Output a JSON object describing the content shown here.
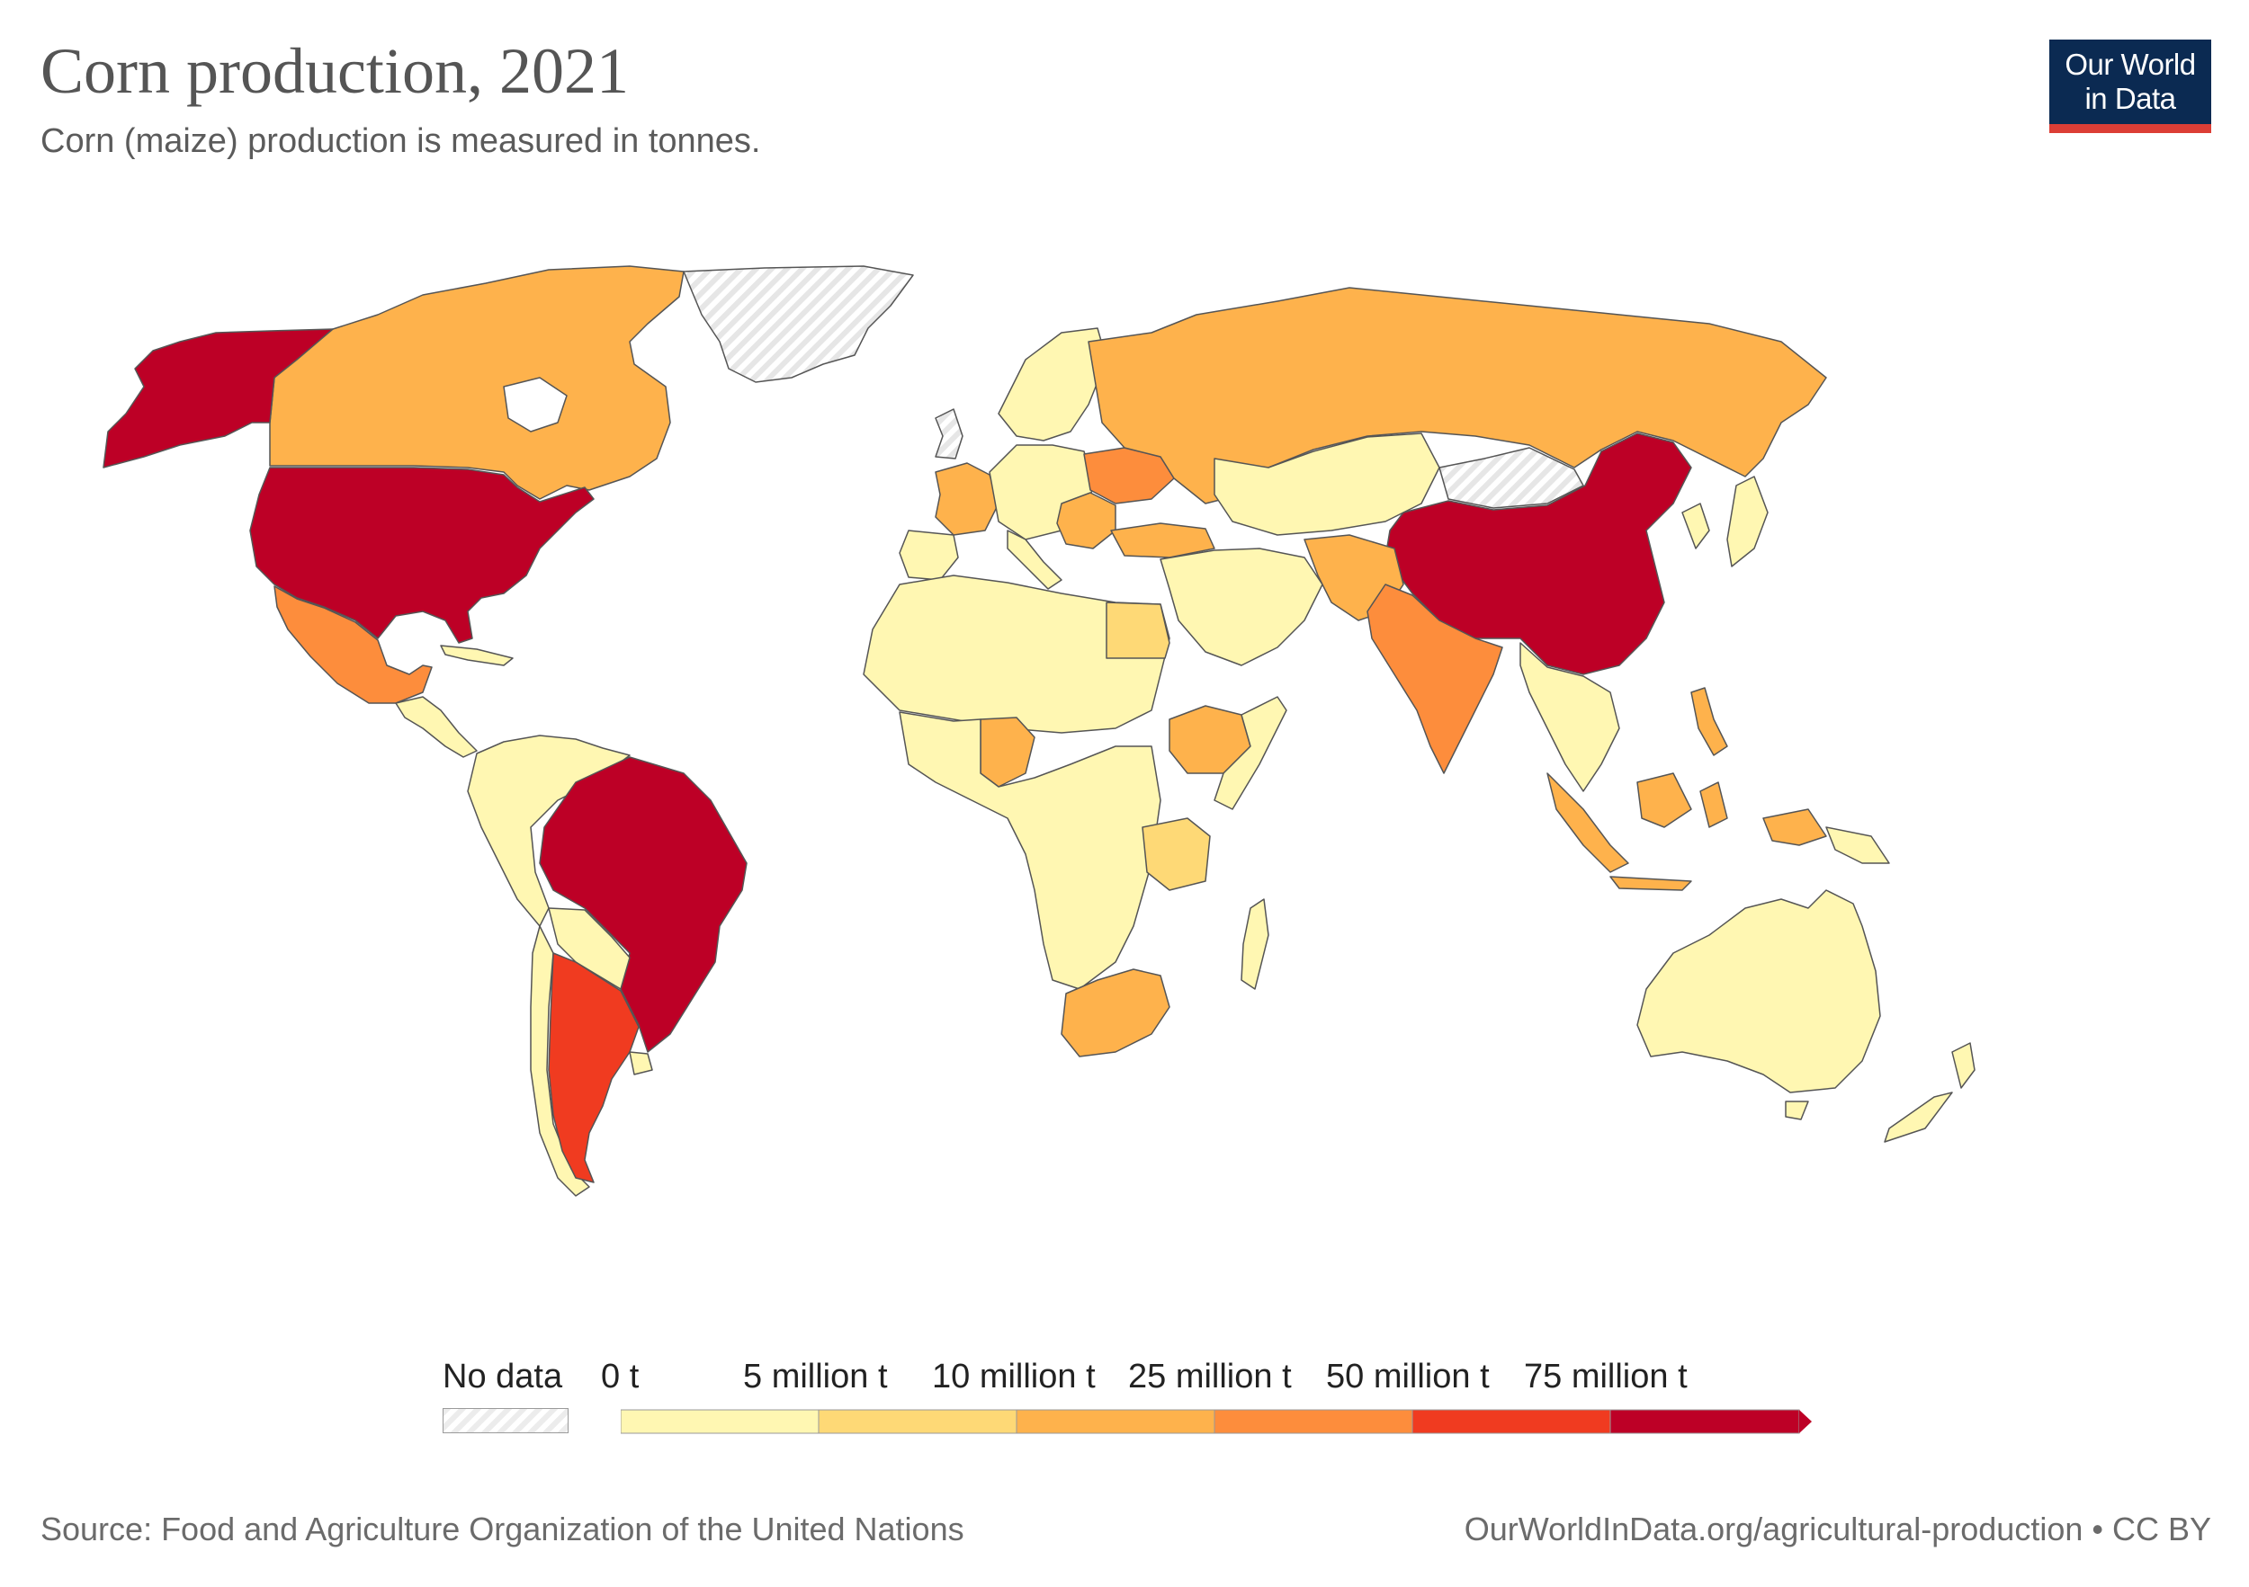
{
  "header": {
    "title": "Corn production, 2021",
    "subtitle": "Corn (maize) production is measured in tonnes.",
    "logo_line1": "Our World",
    "logo_line2": "in Data"
  },
  "legend": {
    "no_data_label": "No data",
    "bins": [
      {
        "label": "0 t",
        "color": "#fff7b2"
      },
      {
        "label": "5 million t",
        "color": "#fed976"
      },
      {
        "label": "10 million t",
        "color": "#feb24c"
      },
      {
        "label": "25 million t",
        "color": "#fd8d3c"
      },
      {
        "label": "50 million t",
        "color": "#f03b20"
      },
      {
        "label": "75 million t",
        "color": "#bd0026"
      }
    ]
  },
  "map_colors": {
    "united-states": "#bd0026",
    "china": "#bd0026",
    "brazil": "#bd0026",
    "argentina": "#f03b20",
    "india": "#fd8d3c",
    "ukraine": "#fd8d3c",
    "mexico": "#fd8d3c",
    "canada": "#feb24c",
    "russia": "#feb24c",
    "france": "#feb24c",
    "south-africa": "#feb24c",
    "indonesia": "#feb24c",
    "nigeria": "#feb24c",
    "ethiopia": "#feb24c",
    "tanzania": "#fed976",
    "egypt": "#fed976",
    "default": "#fff7b2",
    "no-data": "#eeeeee"
  },
  "footer": {
    "source": "Source: Food and Agriculture Organization of the United Nations",
    "url": "OurWorldInData.org/agricultural-production • CC BY"
  }
}
